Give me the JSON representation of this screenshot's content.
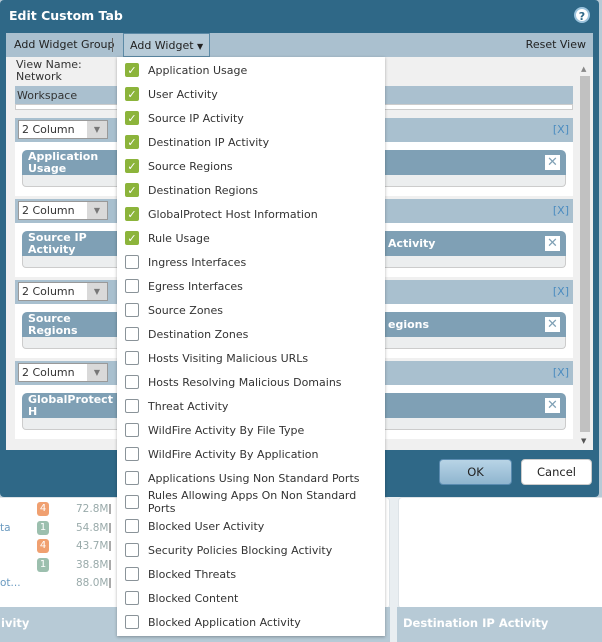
{
  "dialog": {
    "title": "Edit Custom Tab",
    "help_icon": "question-icon"
  },
  "toolbar": {
    "add_widget_group": "Add Widget Group",
    "add_widget": "Add Widget",
    "reset_view": "Reset View"
  },
  "content": {
    "view_name_label": "View Name: Network",
    "workspace_label": "Workspace",
    "groups": [
      {
        "layout": "2 Column",
        "remove": "[X]",
        "widgets": [
          "Application Usage"
        ]
      },
      {
        "layout": "2 Column",
        "remove": "[X]",
        "widgets": [
          "Source IP Activity",
          "Activity"
        ]
      },
      {
        "layout": "2 Column",
        "remove": "[X]",
        "widgets": [
          "Source Regions",
          "egions"
        ]
      },
      {
        "layout": "2 Column",
        "remove": "[X]",
        "widgets": [
          "GlobalProtect H"
        ]
      }
    ]
  },
  "buttons": {
    "ok": "OK",
    "cancel": "Cancel"
  },
  "menu": {
    "items": [
      {
        "label": "Application Usage",
        "checked": true
      },
      {
        "label": "User Activity",
        "checked": true
      },
      {
        "label": "Source IP Activity",
        "checked": true
      },
      {
        "label": "Destination IP Activity",
        "checked": true
      },
      {
        "label": "Source Regions",
        "checked": true
      },
      {
        "label": "Destination Regions",
        "checked": true
      },
      {
        "label": "GlobalProtect Host Information",
        "checked": true
      },
      {
        "label": "Rule Usage",
        "checked": true
      },
      {
        "label": "Ingress Interfaces",
        "checked": false
      },
      {
        "label": "Egress Interfaces",
        "checked": false
      },
      {
        "label": "Source Zones",
        "checked": false
      },
      {
        "label": "Destination Zones",
        "checked": false
      },
      {
        "label": "Hosts Visiting Malicious URLs",
        "checked": false
      },
      {
        "label": "Hosts Resolving Malicious Domains",
        "checked": false
      },
      {
        "label": "Threat Activity",
        "checked": false
      },
      {
        "label": "WildFire Activity By File Type",
        "checked": false
      },
      {
        "label": "WildFire Activity By Application",
        "checked": false
      },
      {
        "label": "Applications Using Non Standard Ports",
        "checked": false
      },
      {
        "label": "Rules Allowing Apps On Non Standard Ports",
        "checked": false
      },
      {
        "label": "Blocked User Activity",
        "checked": false
      },
      {
        "label": "Security Policies Blocking Activity",
        "checked": false
      },
      {
        "label": "Blocked Threats",
        "checked": false
      },
      {
        "label": "Blocked Content",
        "checked": false
      },
      {
        "label": "Blocked Application Activity",
        "checked": false
      }
    ]
  },
  "background": {
    "rows": [
      {
        "name": "",
        "badge": "4",
        "badge_color": "#f0a070",
        "value": "72.8M"
      },
      {
        "name": "ta",
        "badge": "1",
        "badge_color": "#9cbfae",
        "value": "54.8M"
      },
      {
        "name": "",
        "badge": "4",
        "badge_color": "#f0a070",
        "value": "43.7M"
      },
      {
        "name": "",
        "badge": "1",
        "badge_color": "#9cbfae",
        "value": "38.8M"
      },
      {
        "name": "ot...",
        "badge": "",
        "badge_color": "",
        "value": "88.0M"
      }
    ],
    "left_title": "ivity",
    "right_title": "Destination IP Activity"
  }
}
